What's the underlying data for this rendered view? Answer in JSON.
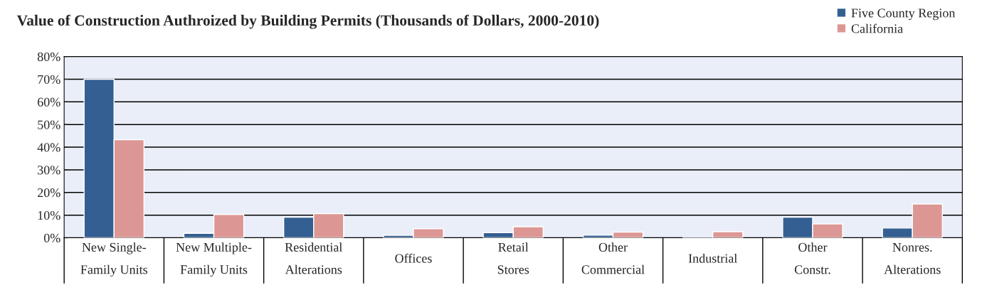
{
  "chart_data": {
    "type": "bar",
    "title": "Value of Construction Authroized by Building Permits (Thousands of Dollars, 2000-2010)",
    "categories": [
      "New Single-\nFamily Units",
      "New Multiple-\nFamily Units",
      "Residential\nAlterations",
      "Offices",
      "Retail\nStores",
      "Other\nCommercial",
      "Industrial",
      "Other\nConstr.",
      "Nonres.\nAlterations"
    ],
    "series": [
      {
        "name": "Five County Region",
        "color": "#345f92",
        "values": [
          70,
          2.0,
          9.1,
          1.1,
          2.3,
          1.2,
          0.2,
          9.1,
          4.3
        ]
      },
      {
        "name": "California",
        "color": "#dc9794",
        "values": [
          43.3,
          10.3,
          10.7,
          4.0,
          4.9,
          2.5,
          2.7,
          6.1,
          14.9
        ]
      }
    ],
    "ylim": [
      0,
      80
    ],
    "yticks": [
      {
        "value": 0,
        "label": "0%"
      },
      {
        "value": 10,
        "label": "10%"
      },
      {
        "value": 20,
        "label": "20%"
      },
      {
        "value": 30,
        "label": "30%"
      },
      {
        "value": 40,
        "label": "40%"
      },
      {
        "value": 50,
        "label": "50%"
      },
      {
        "value": 60,
        "label": "60%"
      },
      {
        "value": 70,
        "label": "70%"
      },
      {
        "value": 80,
        "label": "80%"
      }
    ],
    "grid": "y",
    "legend": "top right"
  }
}
